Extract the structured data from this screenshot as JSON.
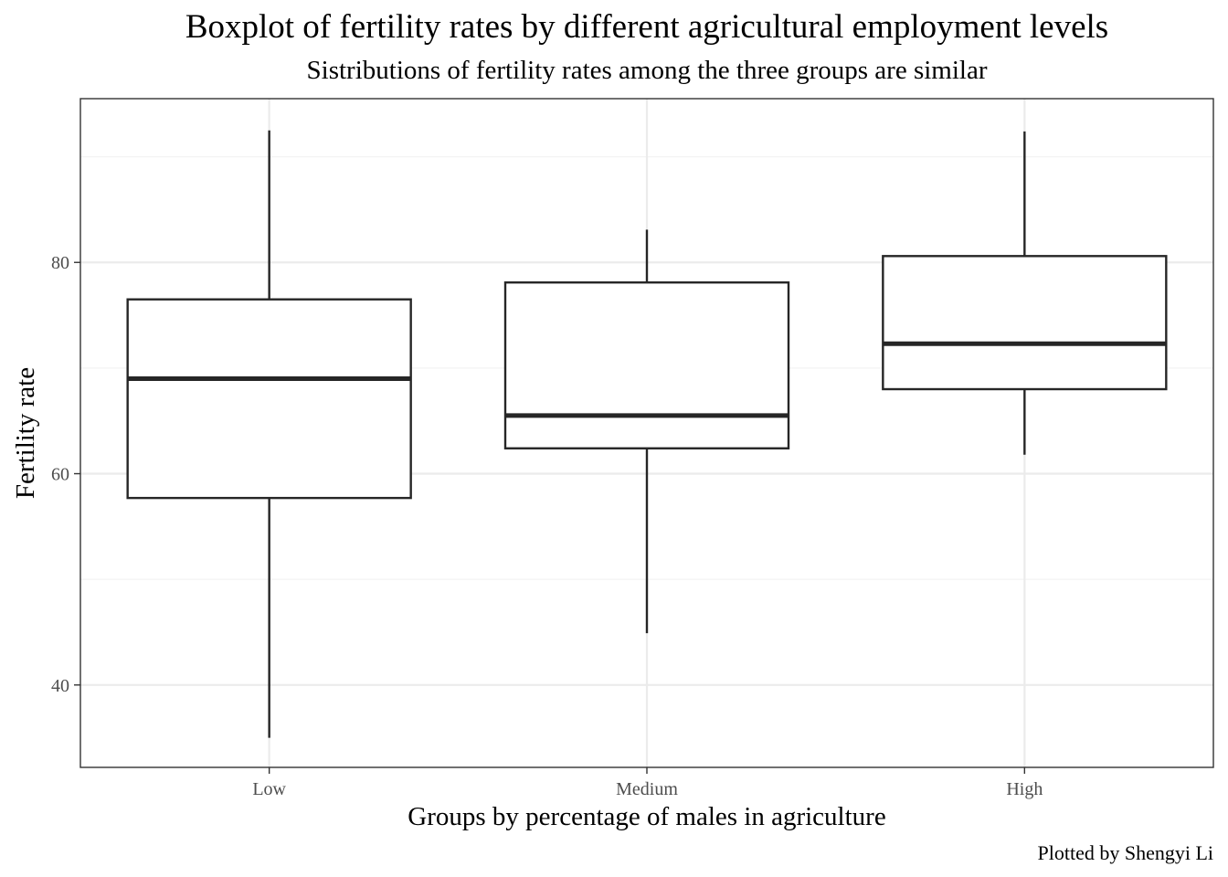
{
  "chart_data": {
    "type": "boxplot",
    "title": "Boxplot of fertility rates by different agricultural employment levels",
    "subtitle": "Sistributions of fertility rates among the three groups are similar",
    "xlabel": "Groups by percentage of males in agriculture",
    "ylabel": "Fertility rate",
    "caption": "Plotted by Shengyi Li",
    "categories": [
      "Low",
      "Medium",
      "High"
    ],
    "boxes": [
      {
        "category": "Low",
        "whisker_low": 35.0,
        "q1": 57.7,
        "median": 69.0,
        "q3": 76.5,
        "whisker_high": 92.5
      },
      {
        "category": "Medium",
        "whisker_low": 44.9,
        "q1": 62.4,
        "median": 65.5,
        "q3": 78.1,
        "whisker_high": 83.1
      },
      {
        "category": "High",
        "whisker_low": 61.8,
        "q1": 68.0,
        "median": 72.3,
        "q3": 80.6,
        "whisker_high": 92.4
      }
    ],
    "ylim": [
      32.2,
      95.5
    ],
    "yticks": [
      40,
      60,
      80
    ],
    "yticks_minor": [
      50,
      70,
      90
    ],
    "ytick_labels": [
      "40",
      "60",
      "80"
    ],
    "grid": true,
    "legend": "none",
    "colors": {
      "panel_border": "#333333",
      "grid_major": "#ebebeb",
      "grid_minor": "#f3f3f3",
      "box_line": "#262626",
      "box_fill": "#ffffff"
    }
  }
}
